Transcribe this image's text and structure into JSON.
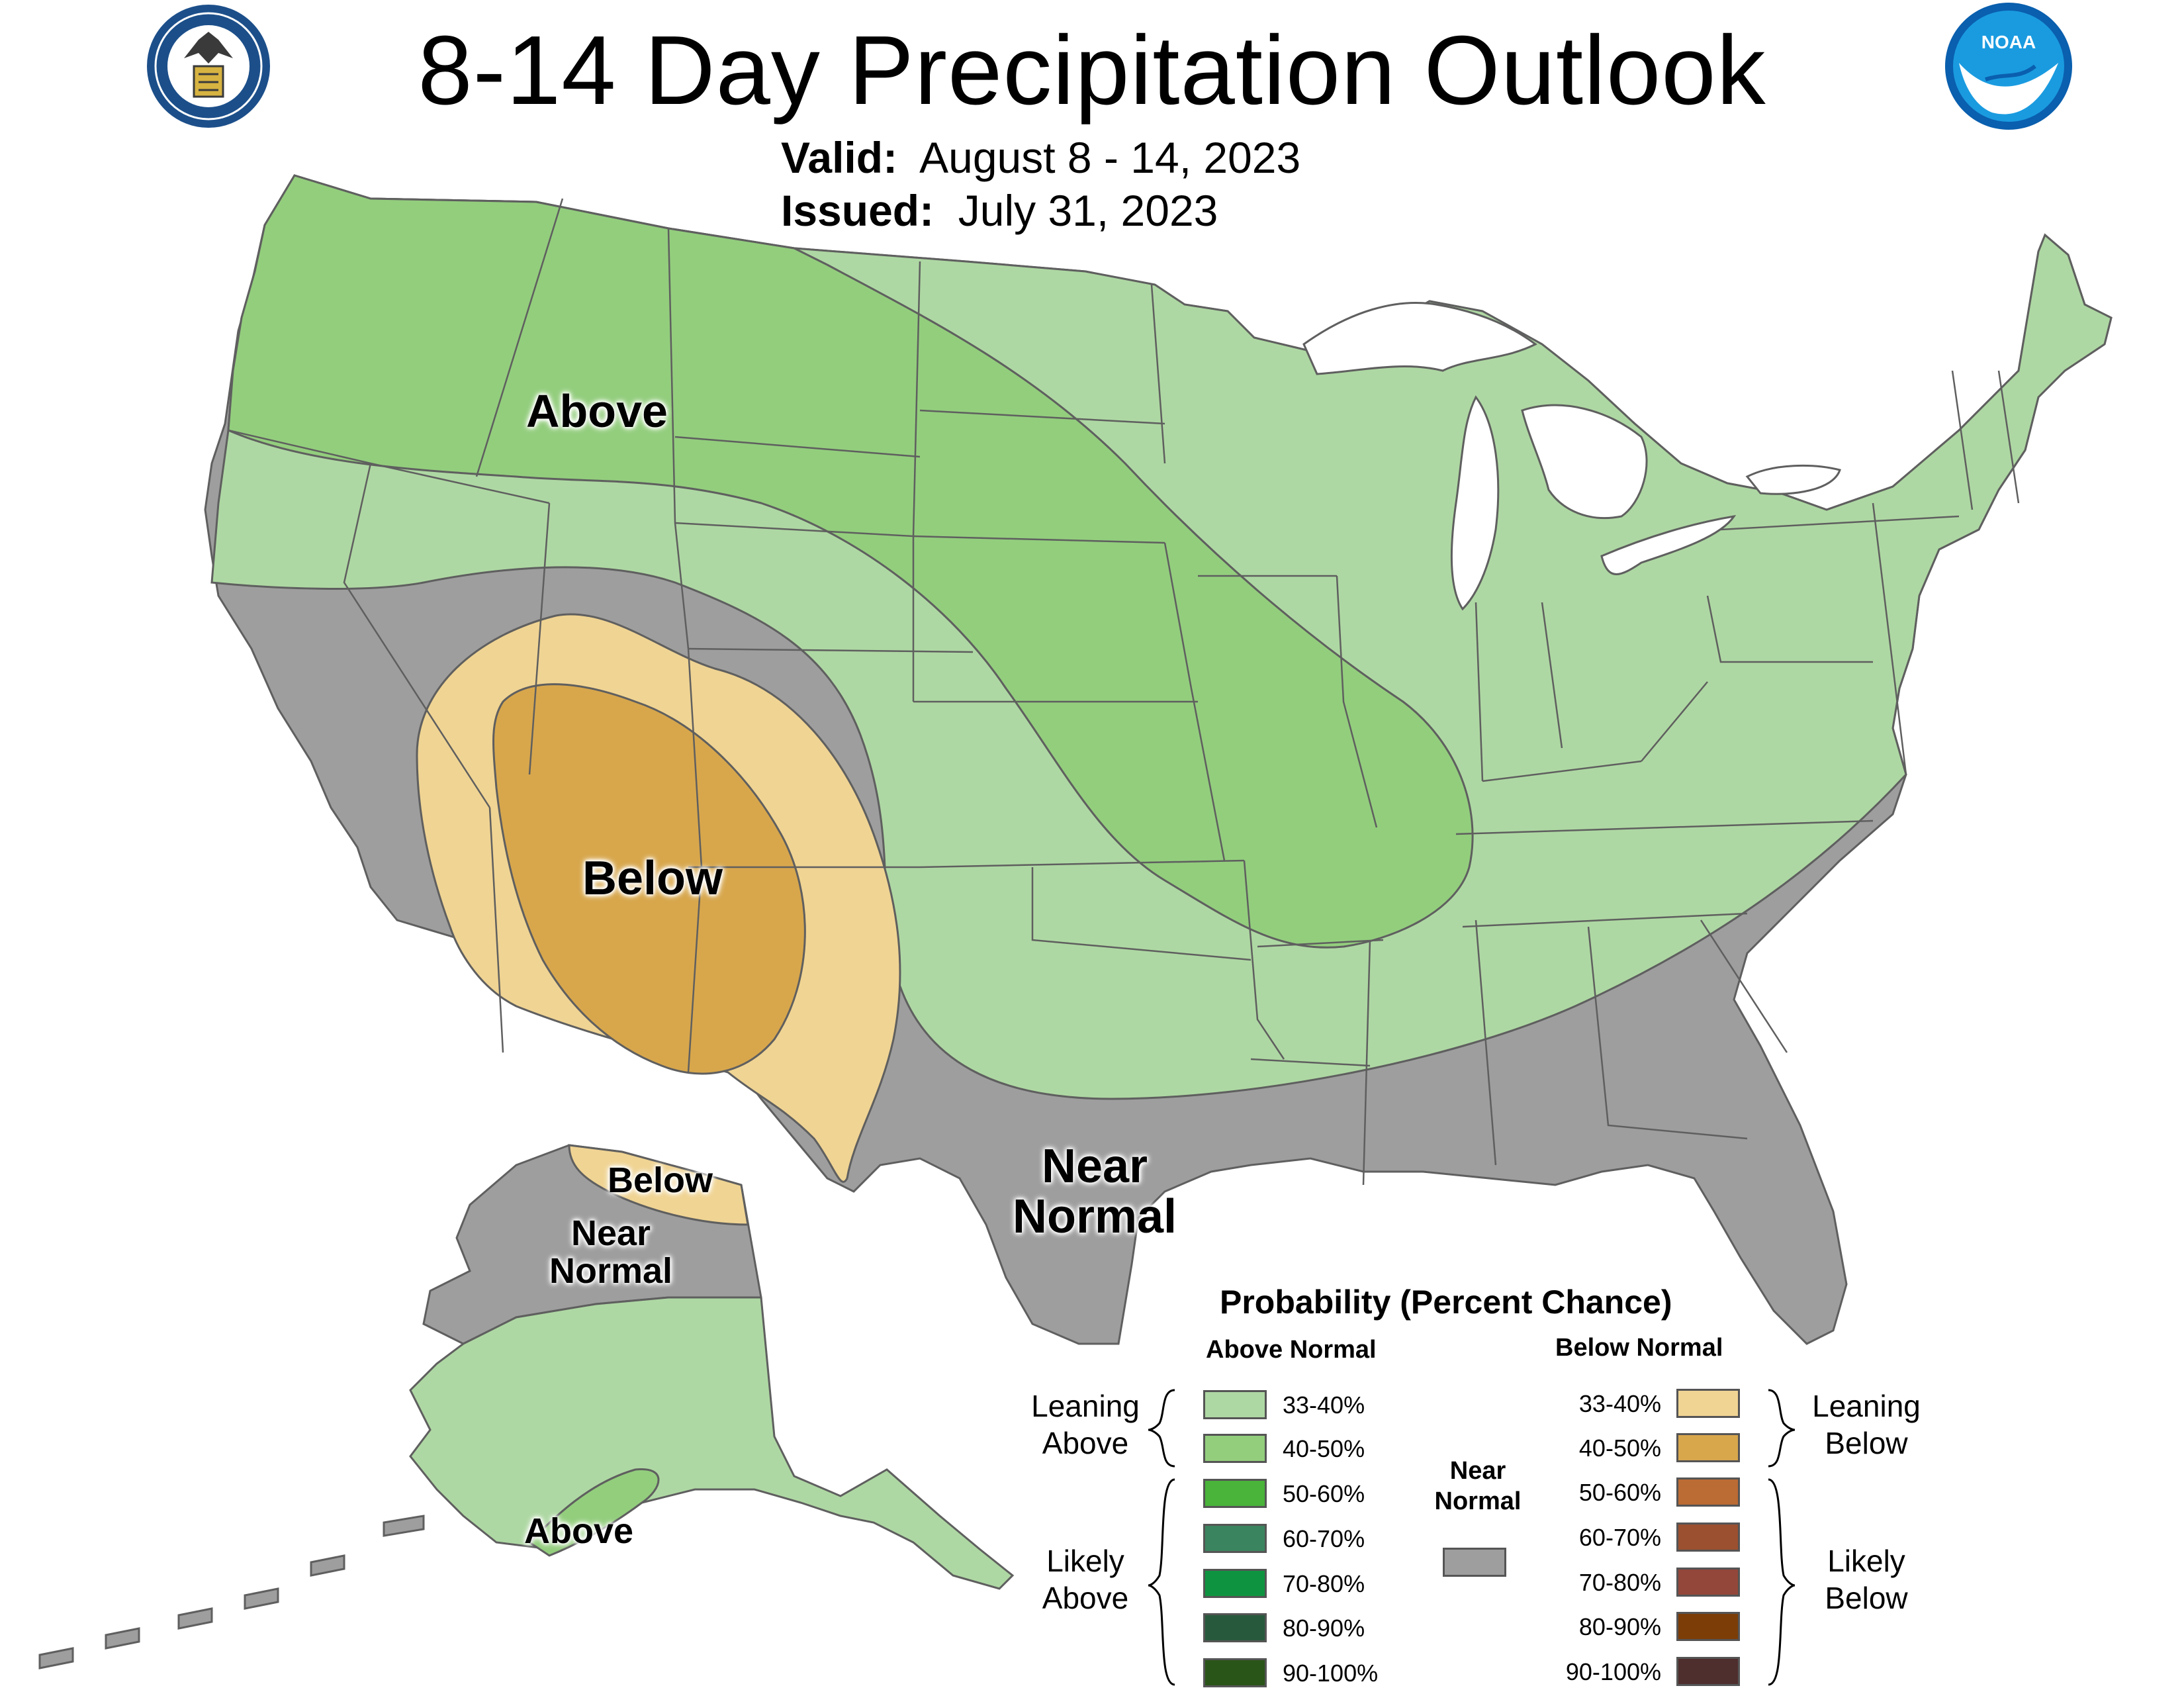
{
  "header": {
    "title": "8-14 Day Precipitation Outlook",
    "valid_label": "Valid:",
    "valid_value": "August 8 - 14, 2023",
    "issued_label": "Issued:",
    "issued_value": "July 31, 2023"
  },
  "logos": {
    "left": "department-of-commerce-seal",
    "right": "noaa-logo",
    "right_text": "NOAA"
  },
  "map_labels": {
    "conus_above": "Above",
    "conus_below": "Below",
    "conus_near_1": "Near",
    "conus_near_2": "Normal",
    "ak_below": "Below",
    "ak_near_1": "Near",
    "ak_near_2": "Normal",
    "ak_above": "Above"
  },
  "colors": {
    "above_33_40": "#aed8a3",
    "above_40_50": "#93ce7d",
    "above_50_60": "#49b33a",
    "above_60_70": "#3b8460",
    "above_70_80": "#0e9440",
    "above_80_90": "#275a3d",
    "above_90_100": "#2a5519",
    "below_33_40": "#f0d493",
    "below_40_50": "#d8a74c",
    "below_50_60": "#bb6b34",
    "below_60_70": "#9b5030",
    "below_70_80": "#93473a",
    "below_80_90": "#7c3d07",
    "below_90_100": "#4f2e2e",
    "near_normal": "#9e9e9e",
    "border": "#5f5f5f"
  },
  "legend": {
    "title": "Probability (Percent Chance)",
    "above_header": "Above Normal",
    "below_header": "Below Normal",
    "near_normal_1": "Near",
    "near_normal_2": "Normal",
    "leaning_above_1": "Leaning",
    "leaning_above_2": "Above",
    "likely_above_1": "Likely",
    "likely_above_2": "Above",
    "leaning_below_1": "Leaning",
    "leaning_below_2": "Below",
    "likely_below_1": "Likely",
    "likely_below_2": "Below",
    "ranges": [
      "33-40%",
      "40-50%",
      "50-60%",
      "60-70%",
      "70-80%",
      "80-90%",
      "90-100%"
    ]
  }
}
